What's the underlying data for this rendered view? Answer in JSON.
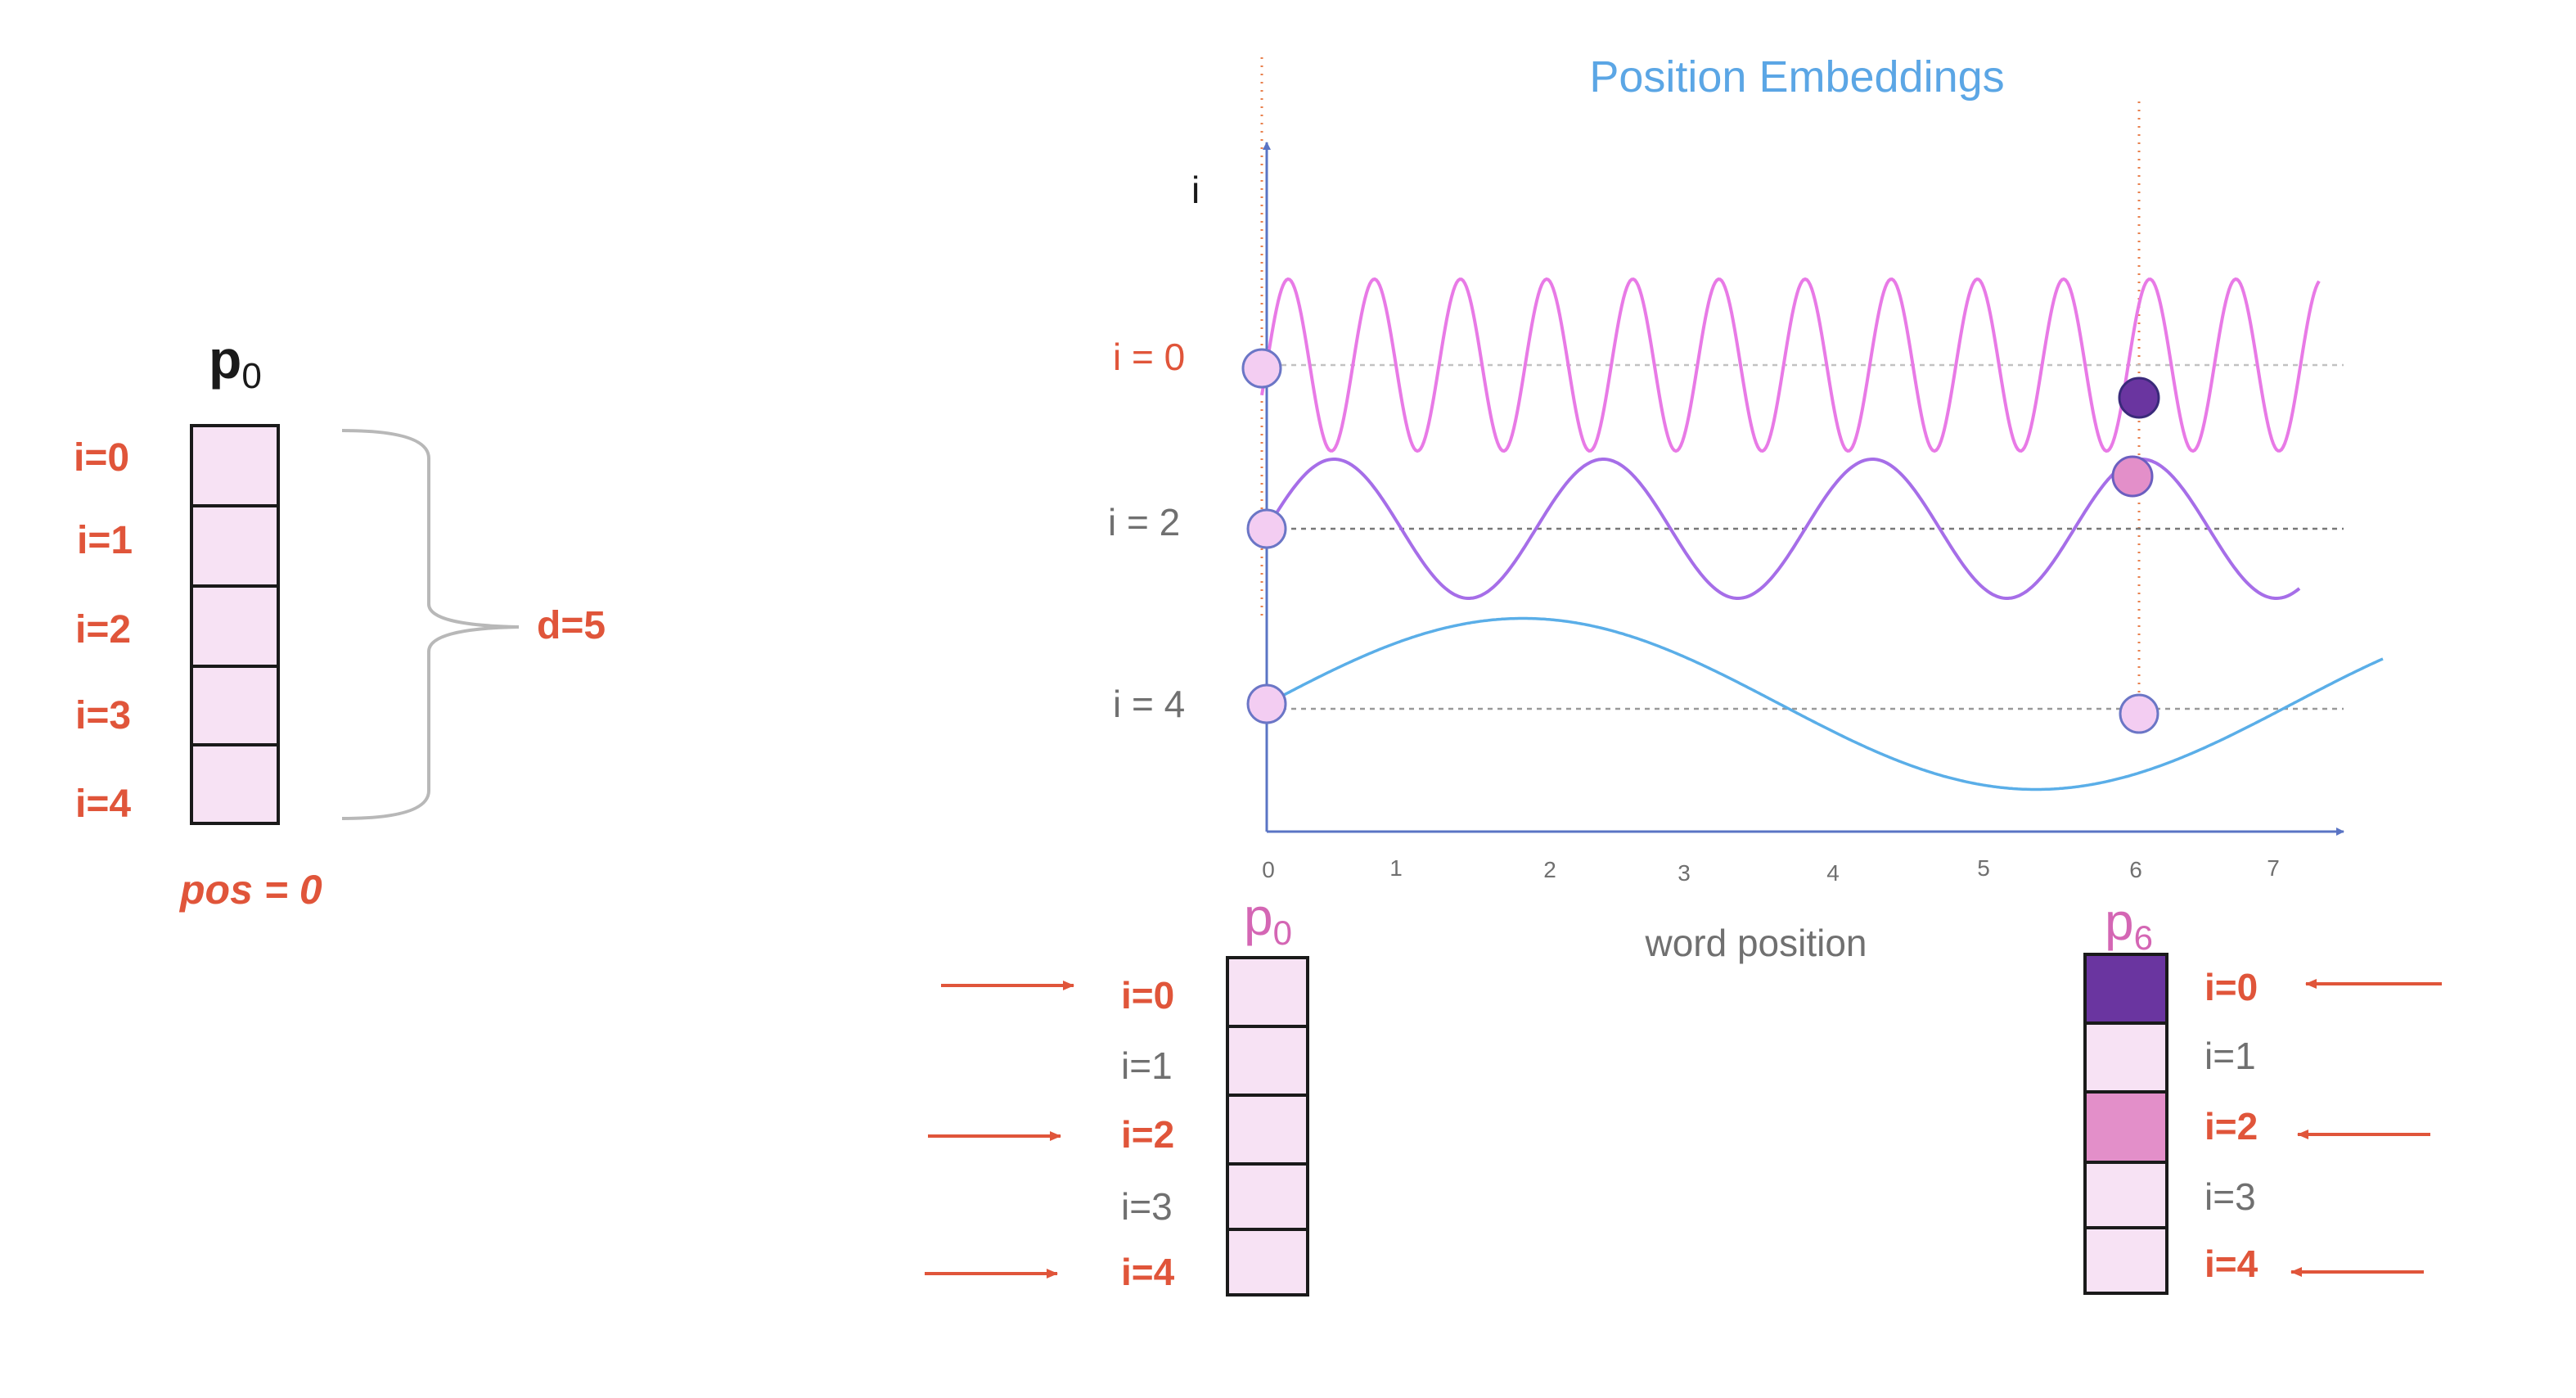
{
  "left_panel": {
    "vector_symbol": "p",
    "vector_subscript": "0",
    "dim_labels": [
      "i=0",
      "i=1",
      "i=2",
      "i=3",
      "i=4"
    ],
    "dim_count_label": "d=5",
    "position_label": "pos = 0"
  },
  "chart": {
    "title": "Position Embeddings",
    "y_axis_label": "i",
    "x_axis_label": "word position",
    "x_ticks": [
      "0",
      "1",
      "2",
      "3",
      "4",
      "5",
      "6",
      "7"
    ],
    "series": [
      {
        "label": "i = 0",
        "highlight": true,
        "color": "#e87ae6",
        "periods_in_range": 12.5,
        "amplitude": 0.7
      },
      {
        "label": "i = 2",
        "highlight": false,
        "color": "#a66ee8",
        "periods_in_range": 4.0,
        "amplitude": 0.5
      },
      {
        "label": "i = 4",
        "highlight": false,
        "color": "#5aaee8",
        "periods_in_range": 1.05,
        "amplitude": 0.55
      }
    ],
    "marked_position": 6
  },
  "bottom_vectors": [
    {
      "symbol": "p",
      "subscript": "0",
      "rows": [
        {
          "label": "i=0",
          "highlight": true,
          "fill": "#f7e2f4"
        },
        {
          "label": "i=1",
          "highlight": false,
          "fill": "#f7e2f4"
        },
        {
          "label": "i=2",
          "highlight": true,
          "fill": "#f7e2f4"
        },
        {
          "label": "i=3",
          "highlight": false,
          "fill": "#f7e2f4"
        },
        {
          "label": "i=4",
          "highlight": true,
          "fill": "#f7e2f4"
        }
      ]
    },
    {
      "symbol": "p",
      "subscript": "6",
      "rows": [
        {
          "label": "i=0",
          "highlight": true,
          "fill": "#6a35a0"
        },
        {
          "label": "i=1",
          "highlight": false,
          "fill": "#f7e2f4"
        },
        {
          "label": "i=2",
          "highlight": true,
          "fill": "#e38fc9"
        },
        {
          "label": "i=3",
          "highlight": false,
          "fill": "#f7e2f4"
        },
        {
          "label": "i=4",
          "highlight": true,
          "fill": "#f7e2f4"
        }
      ]
    }
  ],
  "colors": {
    "accent_red": "#e0553a",
    "title_blue": "#5ba6e5",
    "label_gray": "#707070",
    "axis_blue": "#5a74c4",
    "cell_fill": "#f7e2f4",
    "pink_symbol": "#d466b4"
  }
}
